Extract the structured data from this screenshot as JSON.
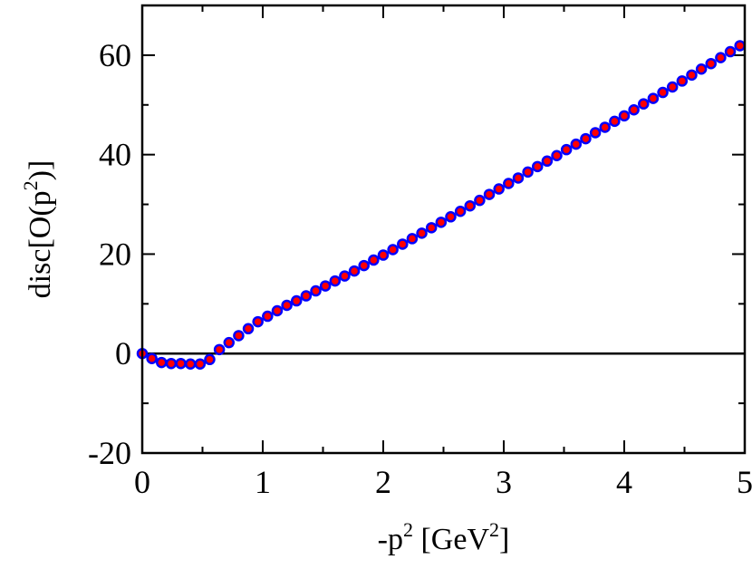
{
  "chart_data": {
    "type": "scatter",
    "xlabel": {
      "pre": "-p",
      "sup": "2",
      "mid": " [GeV",
      "sup2": "2",
      "post": "]"
    },
    "ylabel": {
      "pre": "disc[O(p",
      "sup": "2",
      "post": ")]"
    },
    "xlim": [
      0,
      5
    ],
    "ylim": [
      -20,
      70
    ],
    "x_ticks": [
      0,
      1,
      2,
      3,
      4,
      5
    ],
    "y_ticks": [
      -20,
      0,
      20,
      40,
      60
    ],
    "x_tick_labels": [
      "0",
      "1",
      "2",
      "3",
      "4",
      "5"
    ],
    "y_tick_labels": [
      "-20",
      "0",
      "20",
      "40",
      "60"
    ],
    "zero_line": true,
    "marker": {
      "fill": "#ff0000",
      "stroke": "#0000ff"
    },
    "series": [
      {
        "x": [
          0.0,
          0.08,
          0.16,
          0.24,
          0.32,
          0.4,
          0.48,
          0.56,
          0.64,
          0.72,
          0.8,
          0.88,
          0.96,
          1.04,
          1.12,
          1.2,
          1.28,
          1.36,
          1.44,
          1.52,
          1.6,
          1.68,
          1.76,
          1.84,
          1.92,
          2.0,
          2.08,
          2.16,
          2.24,
          2.32,
          2.4,
          2.48,
          2.56,
          2.64,
          2.72,
          2.8,
          2.88,
          2.96,
          3.04,
          3.12,
          3.2,
          3.28,
          3.36,
          3.44,
          3.52,
          3.6,
          3.68,
          3.76,
          3.84,
          3.92,
          4.0,
          4.08,
          4.16,
          4.24,
          4.32,
          4.4,
          4.48,
          4.56,
          4.64,
          4.72,
          4.8,
          4.88,
          4.96
        ],
        "y": [
          0.0,
          -1.0,
          -1.8,
          -2.0,
          -2.0,
          -2.1,
          -2.1,
          -1.2,
          0.8,
          2.2,
          3.6,
          5.0,
          6.4,
          7.5,
          8.6,
          9.7,
          10.6,
          11.6,
          12.6,
          13.6,
          14.6,
          15.6,
          16.6,
          17.7,
          18.8,
          19.8,
          20.9,
          22.0,
          23.1,
          24.2,
          25.3,
          26.4,
          27.5,
          28.6,
          29.7,
          30.8,
          32.0,
          33.1,
          34.2,
          35.3,
          36.5,
          37.6,
          38.7,
          39.8,
          41.0,
          42.1,
          43.2,
          44.4,
          45.5,
          46.7,
          47.8,
          49.0,
          50.2,
          51.3,
          52.5,
          53.6,
          54.8,
          56.0,
          57.2,
          58.3,
          59.5,
          60.7,
          61.9
        ]
      }
    ]
  }
}
